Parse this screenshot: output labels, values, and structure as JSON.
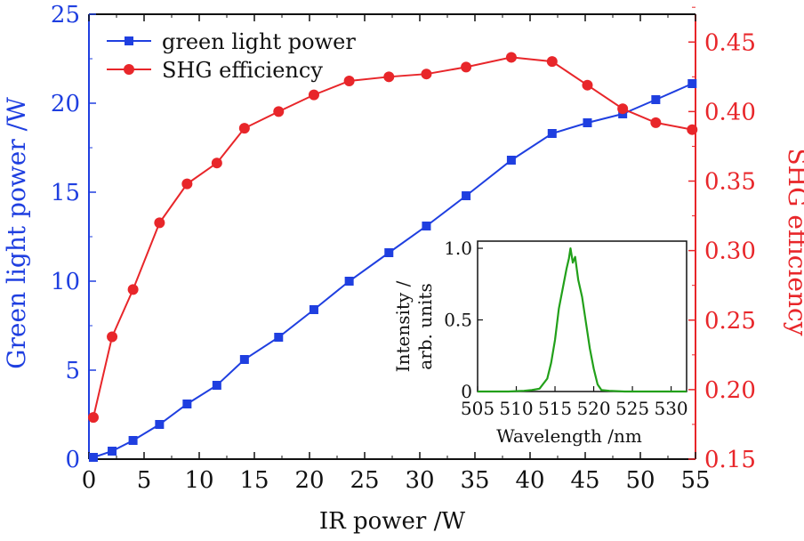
{
  "chart_data": {
    "type": "line",
    "title": "",
    "xlabel": "IR power /W",
    "ylabel": "Green light power /W",
    "y2label": "SHG efficiency",
    "xlim": [
      0,
      55
    ],
    "ylim": [
      0,
      25
    ],
    "y2lim": [
      0.15,
      0.47
    ],
    "x_ticks": [
      "0",
      "5",
      "10",
      "15",
      "20",
      "25",
      "30",
      "35",
      "40",
      "45",
      "50",
      "55"
    ],
    "y_ticks": [
      "0",
      "5",
      "10",
      "15",
      "20",
      "25"
    ],
    "y2_ticks": [
      "0.15",
      "0.20",
      "0.25",
      "0.30",
      "0.35",
      "0.40",
      "0.45"
    ],
    "legend_position": "top-left",
    "colors": {
      "green_power": "#1f3fe0",
      "efficiency": "#e8262a",
      "spectrum": "#22a01a",
      "axis": "#111111"
    },
    "series": [
      {
        "name": "green light power",
        "axis": "left",
        "marker": "square",
        "x": [
          0.4,
          2.1,
          4.0,
          6.4,
          8.9,
          11.6,
          14.1,
          17.2,
          20.4,
          23.6,
          27.2,
          30.6,
          34.2,
          38.3,
          42.0,
          45.2,
          48.4,
          51.4,
          54.7
        ],
        "values": [
          0.1,
          0.45,
          1.05,
          1.95,
          3.1,
          4.15,
          5.6,
          6.85,
          8.4,
          10.0,
          11.6,
          13.1,
          14.8,
          16.8,
          18.3,
          18.9,
          19.4,
          20.2,
          21.1
        ]
      },
      {
        "name": "SHG efficiency",
        "axis": "right",
        "marker": "circle",
        "x": [
          0.4,
          2.1,
          4.0,
          6.4,
          8.9,
          11.6,
          14.1,
          17.2,
          20.4,
          23.6,
          27.2,
          30.6,
          34.2,
          38.3,
          42.0,
          45.2,
          48.4,
          51.4,
          54.7
        ],
        "values": [
          0.18,
          0.238,
          0.272,
          0.32,
          0.348,
          0.363,
          0.388,
          0.4,
          0.412,
          0.422,
          0.425,
          0.427,
          0.432,
          0.439,
          0.436,
          0.419,
          0.402,
          0.392,
          0.387
        ]
      }
    ],
    "inset": {
      "type": "line",
      "xlabel": "Wavelength /nm",
      "ylabel_line1": "Intensity /",
      "ylabel_line2": "arb. units",
      "xlim": [
        505,
        532
      ],
      "ylim": [
        0,
        1.05
      ],
      "x_ticks": [
        "505",
        "510",
        "515",
        "520",
        "525",
        "530"
      ],
      "y_ticks": [
        "0",
        "0.5",
        "1.0"
      ],
      "series": [
        {
          "name": "spectrum",
          "x": [
            505,
            509,
            511,
            512,
            513,
            514,
            514.5,
            515,
            515.5,
            516,
            516.5,
            516.8,
            517,
            517.3,
            517.6,
            518,
            518.5,
            519,
            519.5,
            520,
            520.5,
            521,
            522,
            524,
            532
          ],
          "values": [
            0,
            0,
            0.005,
            0.01,
            0.02,
            0.09,
            0.2,
            0.36,
            0.58,
            0.72,
            0.86,
            0.93,
            1.0,
            0.9,
            0.94,
            0.78,
            0.66,
            0.48,
            0.3,
            0.16,
            0.05,
            0.01,
            0.005,
            0,
            0
          ]
        }
      ]
    }
  }
}
